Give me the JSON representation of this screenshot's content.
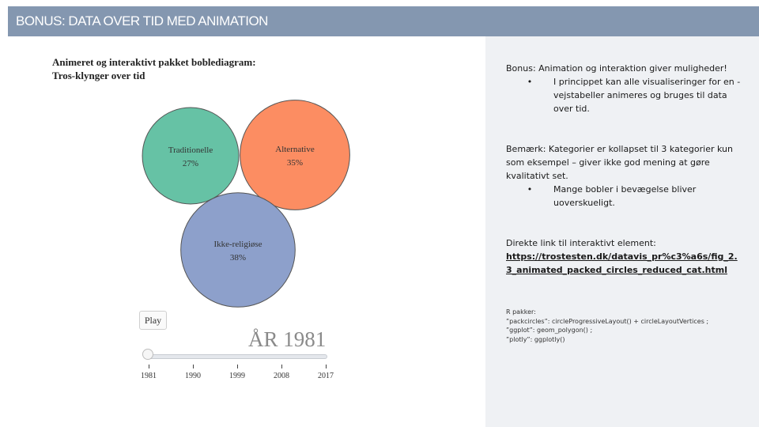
{
  "header": {
    "title": "BONUS: DATA OVER TID MED ANIMATION"
  },
  "chart": {
    "title_line1": "Animeret og interaktivt pakket boblediagram:",
    "title_line2": "Tros-klynger over tid",
    "play_label": "Play",
    "year_label": "ÅR 1981",
    "slider_ticks": [
      "1981",
      "1990",
      "1999",
      "2008",
      "2017"
    ]
  },
  "chart_data": {
    "type": "packed-bubble",
    "title": "Animeret og interaktivt pakket boblediagram: Tros-klynger over tid",
    "year": 1981,
    "bubbles": [
      {
        "name": "Traditionelle",
        "value": 27,
        "label": "27%",
        "color": "#66c2a5"
      },
      {
        "name": "Alternative",
        "value": 35,
        "label": "35%",
        "color": "#fc8d62"
      },
      {
        "name": "Ikke-religiøse",
        "value": 38,
        "label": "38%",
        "color": "#8da0cb"
      }
    ],
    "slider_years": [
      1981,
      1990,
      1999,
      2008,
      2017
    ]
  },
  "notes": {
    "intro": "Bonus: Animation og interaktion giver muligheder!",
    "intro_bullet": "I princippet kan alle visualiseringer for en -vejstabeller animeres og bruges til data over tid.",
    "remark": "Bemærk: Kategorier er kollapset til 3 kategorier kun som eksempel – giver ikke god mening at gøre kvalitativt set.",
    "remark_bullet": "Mange bobler i bevægelse bliver uoverskueligt.",
    "link_intro": "Direkte link til interaktivt element:",
    "link_text": "https://trostesten.dk/datavis_pr%c3%a6s/fig_2.3_animated_packed_circles_reduced_cat.html",
    "bullet_symbol": "•"
  },
  "rpackages": {
    "heading": "R pakker:",
    "line1": "”packcircles”: circleProgressiveLayout() + circleLayoutVertices ;",
    "line2": "”ggplot”: geom_polygon() ;",
    "line3": "”plotly”: ggplotly()"
  }
}
